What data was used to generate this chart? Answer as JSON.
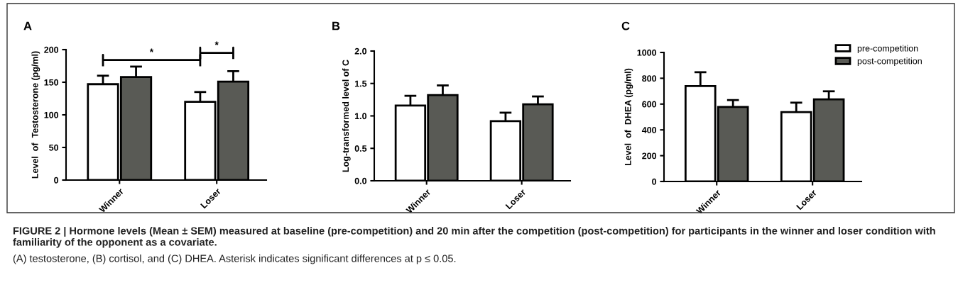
{
  "chart_data": [
    {
      "type": "bar",
      "title": "A",
      "ylabel": "Level  of  Testosterone (pg/ml)",
      "categories": [
        "Winner",
        "Loser"
      ],
      "ylim": [
        0,
        200
      ],
      "yticks": [
        0,
        50,
        100,
        150,
        200
      ],
      "series": [
        {
          "color": "#ffffff",
          "values": [
            147,
            120
          ],
          "errors": [
            13,
            15
          ]
        },
        {
          "color": "#595a55",
          "values": [
            158,
            151
          ],
          "errors": [
            16,
            16
          ]
        }
      ],
      "annotations": [
        "*",
        "*",
        "FIGURE 2 | Hormone levels (Mean ± SEM) measured at baseline (pre-competition) and 20 min after the competition (post-competition) for participants in the winner and loser condition with familiarity of the opponent as a covariate.",
        "(A) testosterone, (B) cortisol, and (C) DHEA. Asterisk indicates significant differences at p ≤ 0.05."
      ]
    },
    {
      "type": "bar",
      "title": "B",
      "ylabel": "Log-transformed level of C",
      "categories": [
        "Winner",
        "Loser"
      ],
      "ylim": [
        0,
        2.0
      ],
      "yticks": [
        {
          "value": 0,
          "label": "0.0"
        },
        0.5,
        {
          "value": 1,
          "label": "1.0"
        },
        1.5,
        {
          "value": 2,
          "label": "2.0"
        }
      ],
      "series": [
        {
          "color": "#ffffff",
          "values": [
            1.16,
            0.92
          ],
          "errors": [
            0.15,
            0.13
          ]
        },
        {
          "color": "#595a55",
          "values": [
            1.32,
            1.18
          ],
          "errors": [
            0.15,
            0.12
          ]
        }
      ]
    },
    {
      "type": "bar",
      "title": "C",
      "ylabel": "Level  of  DHEA (pg/ml)",
      "categories": [
        "Winner",
        "Loser"
      ],
      "ylim": [
        0,
        1000
      ],
      "yticks": [
        0,
        200,
        400,
        600,
        800,
        1000
      ],
      "legend": "top right",
      "series": [
        {
          "name": "pre-competition",
          "color": "#ffffff",
          "values": [
            740,
            538
          ],
          "errors": [
            107,
            73
          ]
        },
        {
          "name": "post-competition",
          "color": "#595a55",
          "values": [
            578,
            637
          ],
          "errors": [
            53,
            62
          ]
        }
      ]
    }
  ]
}
